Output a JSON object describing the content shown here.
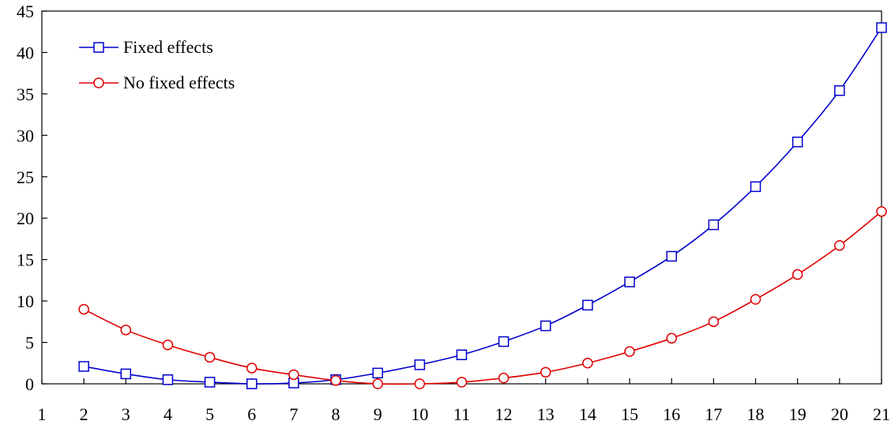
{
  "chart_data": {
    "type": "line",
    "title": "",
    "xlabel": "",
    "ylabel": "",
    "xlim": [
      1,
      21
    ],
    "ylim": [
      0,
      45
    ],
    "x_ticks": [
      "1",
      "2",
      "3",
      "4",
      "5",
      "6",
      "7",
      "8",
      "9",
      "10",
      "11",
      "12",
      "13",
      "14",
      "15",
      "16",
      "17",
      "18",
      "19",
      "20",
      "21"
    ],
    "y_ticks": [
      "0",
      "5",
      "10",
      "15",
      "20",
      "25",
      "30",
      "35",
      "40",
      "45"
    ],
    "grid": false,
    "legend_position": "top-left",
    "x": [
      2,
      3,
      4,
      5,
      6,
      7,
      8,
      9,
      10,
      11,
      12,
      13,
      14,
      15,
      16,
      17,
      18,
      19,
      20,
      21
    ],
    "series": [
      {
        "name": "Fixed effects",
        "color": "#0000cc",
        "marker": "square",
        "values": [
          2.1,
          1.2,
          0.5,
          0.2,
          0.0,
          0.1,
          0.5,
          1.3,
          2.3,
          3.5,
          5.1,
          7.0,
          9.5,
          12.3,
          15.4,
          19.2,
          23.8,
          29.2,
          35.4,
          43.0
        ]
      },
      {
        "name": "No fixed effects",
        "color": "#e00000",
        "marker": "circle",
        "values": [
          9.0,
          6.5,
          4.7,
          3.2,
          1.9,
          1.1,
          0.4,
          0.0,
          0.0,
          0.2,
          0.7,
          1.4,
          2.5,
          3.9,
          5.5,
          7.5,
          10.2,
          13.2,
          16.7,
          20.8
        ]
      }
    ]
  }
}
